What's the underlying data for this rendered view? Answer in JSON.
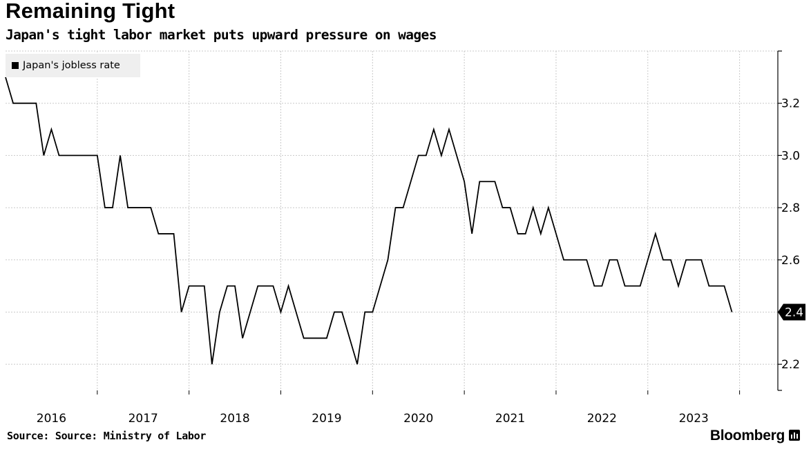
{
  "title": "Remaining Tight",
  "subtitle": "Japan's tight labor market puts upward pressure on wages",
  "source": "Source: Source: Ministry of Labor",
  "brand": "Bloomberg",
  "colors": {
    "line": "#000000",
    "grid": "#c8c8c8",
    "legend_bg": "#efefef",
    "callout": "#000000"
  },
  "chart_data": {
    "type": "line",
    "title": "Remaining Tight",
    "subtitle": "Japan's tight labor market puts upward pressure on wages",
    "xlabel": "",
    "ylabel": "",
    "legend": {
      "position": "top-left",
      "entries": [
        "Japan's jobless rate"
      ]
    },
    "grid": true,
    "y_axis_side": "right",
    "ylim": [
      2.1,
      3.4
    ],
    "yticks": [
      2.2,
      2.4,
      2.6,
      2.8,
      3.0,
      3.2
    ],
    "ytick_labels": [
      "2.2",
      "2.4",
      "2.6",
      "2.8",
      "3.0",
      "3.2"
    ],
    "xlim": [
      2015.5,
      2023.917
    ],
    "xticks": [
      2016,
      2017,
      2018,
      2019,
      2020,
      2021,
      2022,
      2023
    ],
    "xtick_labels": [
      "2016",
      "2017",
      "2018",
      "2019",
      "2020",
      "2021",
      "2022",
      "2023"
    ],
    "start": "2015-07",
    "frequency": "monthly",
    "last_value_label": "2.4",
    "series": [
      {
        "name": "Japan's jobless rate",
        "values": [
          3.3,
          3.2,
          3.2,
          3.2,
          3.2,
          3.0,
          3.1,
          3.0,
          3.0,
          3.0,
          3.0,
          3.0,
          3.0,
          2.8,
          2.8,
          3.0,
          2.8,
          2.8,
          2.8,
          2.8,
          2.7,
          2.7,
          2.7,
          2.4,
          2.5,
          2.5,
          2.5,
          2.2,
          2.4,
          2.5,
          2.5,
          2.3,
          2.4,
          2.5,
          2.5,
          2.5,
          2.4,
          2.5,
          2.4,
          2.3,
          2.3,
          2.3,
          2.3,
          2.4,
          2.4,
          2.3,
          2.2,
          2.4,
          2.4,
          2.5,
          2.6,
          2.8,
          2.8,
          2.9,
          3.0,
          3.0,
          3.1,
          3.0,
          3.1,
          3.0,
          2.9,
          2.7,
          2.9,
          2.9,
          2.9,
          2.8,
          2.8,
          2.7,
          2.7,
          2.8,
          2.7,
          2.8,
          2.7,
          2.6,
          2.6,
          2.6,
          2.6,
          2.5,
          2.5,
          2.6,
          2.6,
          2.5,
          2.5,
          2.5,
          2.6,
          2.7,
          2.6,
          2.6,
          2.5,
          2.6,
          2.6,
          2.6,
          2.5,
          2.5,
          2.5,
          2.4
        ]
      }
    ]
  }
}
